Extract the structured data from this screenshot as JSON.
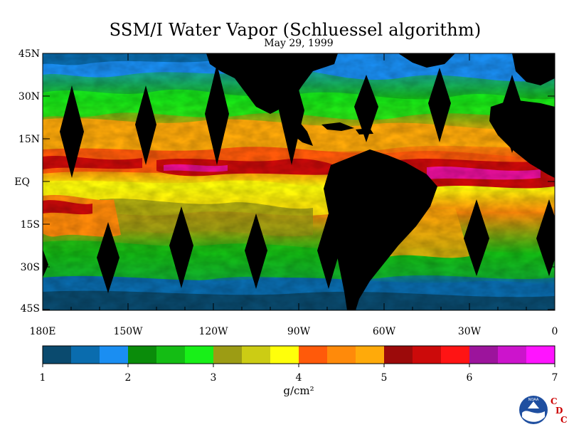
{
  "title": "SSM/I Water Vapor (Schluessel algorithm)",
  "date": "May 29, 1999",
  "lat_labels": [
    "45N",
    "30N",
    "15N",
    "EQ",
    "15S",
    "30S",
    "45S"
  ],
  "lon_labels": [
    "180E",
    "150W",
    "120W",
    "90W",
    "60W",
    "30W",
    "0"
  ],
  "colorbar": {
    "colors": [
      "#0a4a6e",
      "#0a6cae",
      "#1a8ef2",
      "#0a8c0a",
      "#14bd14",
      "#18f018",
      "#9c9c14",
      "#cccc14",
      "#ffff0a",
      "#ff5a0a",
      "#ff8a0a",
      "#ffaa0a",
      "#9c0a0a",
      "#cc0a0a",
      "#ff1414",
      "#9c149c",
      "#cc14cc",
      "#ff14ff"
    ],
    "tick_labels": [
      "1",
      "2",
      "3",
      "4",
      "5",
      "6",
      "7"
    ],
    "unit": "g/cm²"
  },
  "logo": {
    "letters": [
      "C",
      "D",
      "C"
    ],
    "badge_text": "NOAA"
  }
}
